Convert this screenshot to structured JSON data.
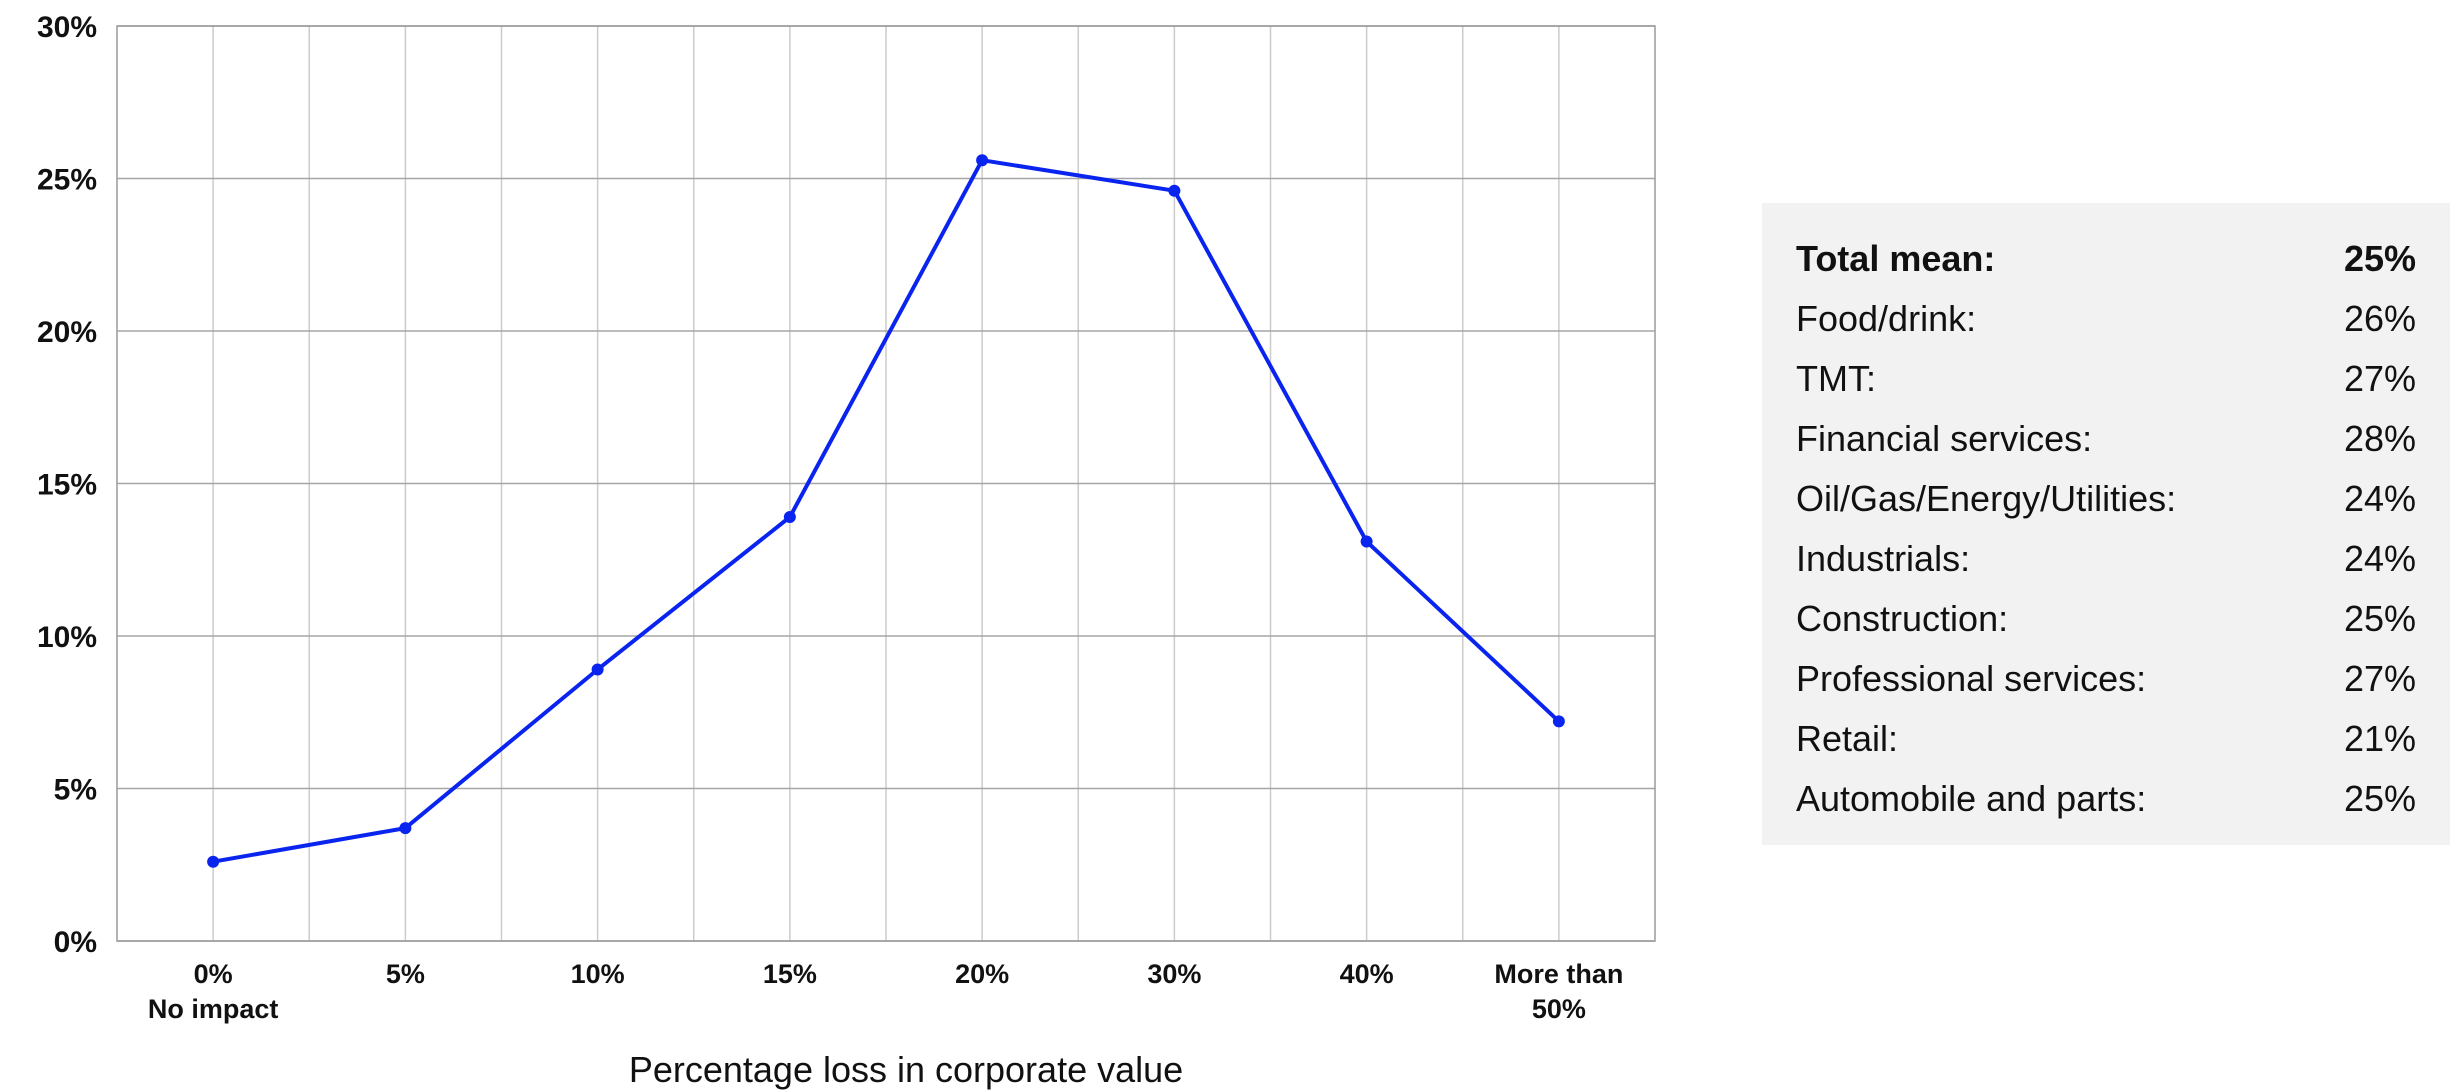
{
  "chart_data": {
    "type": "line",
    "categories": [
      "0%\nNo impact",
      "5%",
      "10%",
      "15%",
      "20%",
      "30%",
      "40%",
      "More than\n50%"
    ],
    "series": [
      {
        "values": [
          2.6,
          3.7,
          8.9,
          13.9,
          25.6,
          24.6,
          13.1,
          7.2
        ]
      }
    ],
    "xlabel": "Percentage loss in corporate value",
    "ylabel": "",
    "ylim": [
      0,
      30
    ],
    "yticks": [
      "0%",
      "5%",
      "10%",
      "15%",
      "20%",
      "25%",
      "30%"
    ],
    "grid": true,
    "line_color": "#0a24f0"
  },
  "mean_box": {
    "total": {
      "label": "Total mean:",
      "value": "25%"
    },
    "rows": [
      {
        "label": "Food/drink:",
        "value": "26%"
      },
      {
        "label": "TMT:",
        "value": "27%"
      },
      {
        "label": "Financial services:",
        "value": "28%"
      },
      {
        "label": "Oil/Gas/Energy/Utilities:",
        "value": "24%"
      },
      {
        "label": "Industrials:",
        "value": "24%"
      },
      {
        "label": "Construction:",
        "value": "25%"
      },
      {
        "label": "Professional services:",
        "value": "27%"
      },
      {
        "label": "Retail:",
        "value": "21%"
      },
      {
        "label": "Automobile and parts:",
        "value": "25%"
      }
    ]
  }
}
